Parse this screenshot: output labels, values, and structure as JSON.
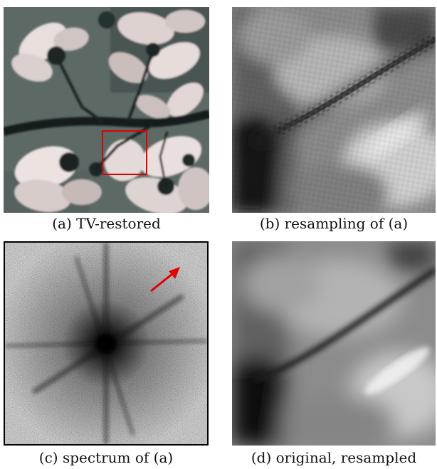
{
  "figure": {
    "panels": [
      {
        "id": "a",
        "caption": "(a) TV-restored"
      },
      {
        "id": "b",
        "caption": "(b) resampling of (a)"
      },
      {
        "id": "c",
        "caption": "(c) spectrum of (a)"
      },
      {
        "id": "d",
        "caption": "(d) original, resampled"
      }
    ],
    "colors": {
      "zoom_box": "#e00000",
      "arrow": "#e00000",
      "panel_border": "#000000"
    }
  }
}
